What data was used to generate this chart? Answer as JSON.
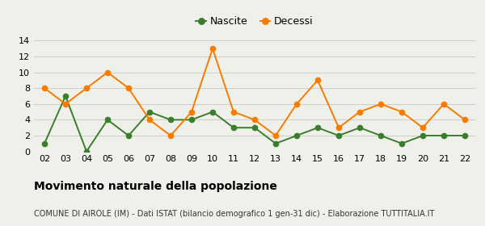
{
  "years": [
    "02",
    "03",
    "04",
    "05",
    "06",
    "07",
    "08",
    "09",
    "10",
    "11",
    "12",
    "13",
    "14",
    "15",
    "16",
    "17",
    "18",
    "19",
    "20",
    "21",
    "22"
  ],
  "nascite": [
    1,
    7,
    0,
    4,
    2,
    5,
    4,
    4,
    5,
    3,
    3,
    1,
    2,
    3,
    2,
    3,
    2,
    1,
    2,
    2,
    2
  ],
  "decessi": [
    8,
    6,
    8,
    10,
    8,
    4,
    2,
    5,
    13,
    5,
    4,
    2,
    6,
    9,
    3,
    5,
    6,
    5,
    3,
    6,
    4
  ],
  "nascite_color": "#3a7d2c",
  "decessi_color": "#f57c00",
  "background_color": "#f0f0eb",
  "title": "Movimento naturale della popolazione",
  "subtitle": "COMUNE DI AIROLE (IM) - Dati ISTAT (bilancio demografico 1 gen-31 dic) - Elaborazione TUTTITALIA.IT",
  "legend_nascite": "Nascite",
  "legend_decessi": "Decessi",
  "ylim": [
    0,
    14
  ],
  "yticks": [
    0,
    2,
    4,
    6,
    8,
    10,
    12,
    14
  ],
  "grid_color": "#cccccc",
  "title_fontsize": 10,
  "subtitle_fontsize": 7,
  "legend_fontsize": 9,
  "tick_fontsize": 8
}
